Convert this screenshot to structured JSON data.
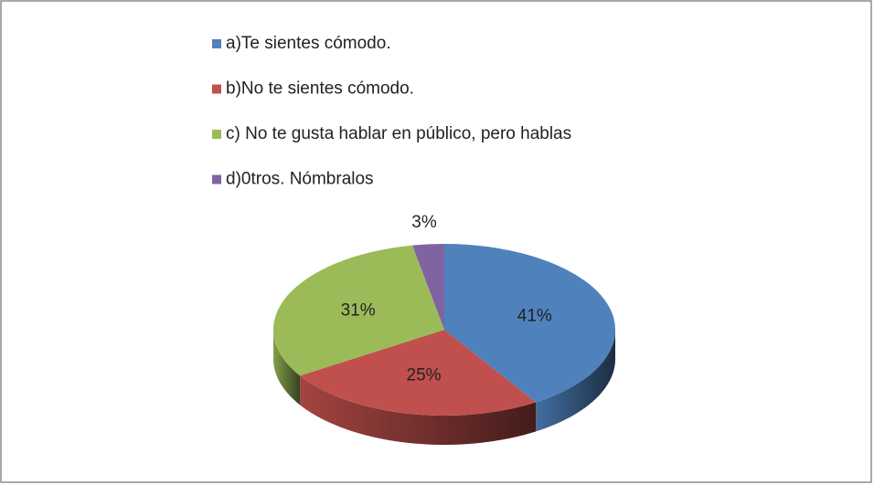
{
  "chart_data": {
    "type": "pie",
    "categories": [
      "a)Te sientes cómodo.",
      "b)No te sientes cómodo.",
      "c)    No te gusta hablar en público, pero hablas",
      "d)0tros.  Nómbralos"
    ],
    "values": [
      41,
      25,
      31,
      3
    ],
    "value_labels": [
      "41%",
      "25%",
      "31%",
      "3%"
    ],
    "colors": [
      "#4f81bd",
      "#c0504d",
      "#9bbb59",
      "#8064a2"
    ],
    "legend": "top"
  }
}
